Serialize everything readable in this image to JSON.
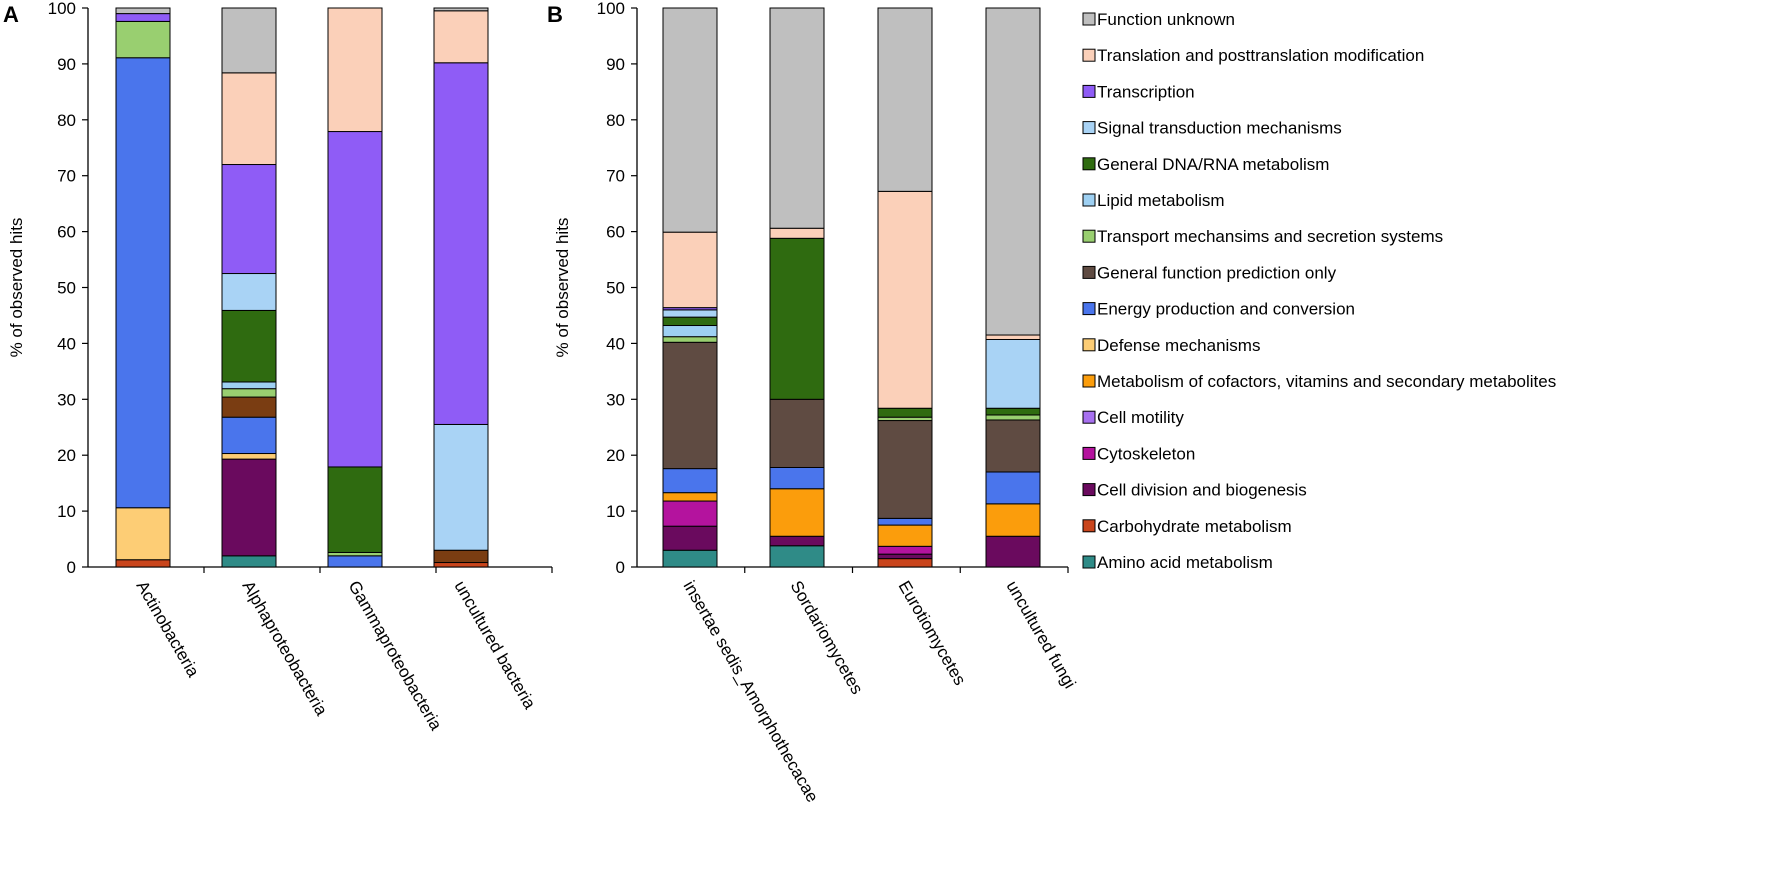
{
  "chart_data": [
    {
      "type": "bar",
      "stacked": true,
      "panel_label": "A",
      "ylabel": "% of observed hits",
      "ylim": [
        0,
        100
      ],
      "yticks": [
        0,
        10,
        20,
        30,
        40,
        50,
        60,
        70,
        80,
        90,
        100
      ],
      "categories": [
        "Actinobacteria",
        "Alphaproteobacteria",
        "Gammaproteobacteria",
        "uncultured bacteria"
      ],
      "series": [
        {
          "name": "Amino acid metabolism",
          "values": [
            0,
            2,
            0,
            0
          ]
        },
        {
          "name": "Carbohydrate metabolism",
          "values": [
            1.3,
            0,
            0,
            0.8
          ]
        },
        {
          "name": "Cell division and biogenesis",
          "values": [
            0,
            17.3,
            0,
            0
          ]
        },
        {
          "name": "Cytoskeleton",
          "values": [
            0,
            0,
            0,
            0
          ]
        },
        {
          "name": "Cell motility",
          "values": [
            0,
            0,
            0,
            0
          ]
        },
        {
          "name": "Metabolism of cofactors, vitamins and secondary metabolites",
          "values": [
            0,
            0,
            0,
            0
          ]
        },
        {
          "name": "Defense mechanisms",
          "values": [
            9.3,
            1,
            0,
            0
          ]
        },
        {
          "name": "Energy production and conversion",
          "values": [
            80.5,
            6.5,
            2,
            0
          ]
        },
        {
          "name": "General function prediction only",
          "values": [
            0,
            3.6,
            0,
            2.2
          ]
        },
        {
          "name": "Transport mechansims and secretion systems",
          "values": [
            6.5,
            1.5,
            0.6,
            0
          ]
        },
        {
          "name": "Lipid metabolism",
          "values": [
            0,
            1.2,
            0,
            0
          ]
        },
        {
          "name": "General DNA/RNA metabolism",
          "values": [
            0,
            12.8,
            15.3,
            0
          ]
        },
        {
          "name": "Signal transduction mechanisms",
          "values": [
            0,
            6.6,
            0,
            22.5
          ]
        },
        {
          "name": "Transcription",
          "values": [
            1.4,
            19.5,
            60,
            64.7
          ]
        },
        {
          "name": "Translation and posttranslation modification",
          "values": [
            0,
            16.4,
            22.1,
            9.3
          ]
        },
        {
          "name": "Function unknown",
          "values": [
            1,
            11.6,
            0,
            0.5
          ]
        }
      ]
    },
    {
      "type": "bar",
      "stacked": true,
      "panel_label": "B",
      "ylabel": "% of observed hits",
      "ylim": [
        0,
        100
      ],
      "yticks": [
        0,
        10,
        20,
        30,
        40,
        50,
        60,
        70,
        80,
        90,
        100
      ],
      "categories": [
        "insertae sedis_Amorphothecacae",
        "Sordariomycetes",
        "Eurotiomycetes",
        "uncultured fungi"
      ],
      "series": [
        {
          "name": "Amino acid metabolism",
          "values": [
            3,
            3.8,
            0,
            0
          ]
        },
        {
          "name": "Carbohydrate metabolism",
          "values": [
            0,
            0,
            1.5,
            0
          ]
        },
        {
          "name": "Cell division and biogenesis",
          "values": [
            4.3,
            1.7,
            0.8,
            5.5
          ]
        },
        {
          "name": "Cytoskeleton",
          "values": [
            4.5,
            0,
            1.4,
            0
          ]
        },
        {
          "name": "Cell motility",
          "values": [
            0,
            0,
            0,
            0
          ]
        },
        {
          "name": "Metabolism of cofactors, vitamins and secondary metabolites",
          "values": [
            1.5,
            8.5,
            3.8,
            5.8
          ]
        },
        {
          "name": "Defense mechanisms",
          "values": [
            0,
            0,
            0,
            0
          ]
        },
        {
          "name": "Energy production and conversion",
          "values": [
            4.3,
            3.8,
            1.2,
            5.7
          ]
        },
        {
          "name": "General function prediction only",
          "values": [
            22.6,
            12.2,
            17.5,
            9.3
          ]
        },
        {
          "name": "Transport mechansims and secretion systems",
          "values": [
            1,
            0,
            0.6,
            0.9
          ]
        },
        {
          "name": "Lipid metabolism",
          "values": [
            2,
            0,
            0,
            0
          ]
        },
        {
          "name": "General DNA/RNA metabolism",
          "values": [
            1.5,
            28.8,
            1.6,
            1.2
          ]
        },
        {
          "name": "Signal transduction mechanisms",
          "values": [
            1.3,
            0,
            0,
            12.3
          ]
        },
        {
          "name": "Transcription",
          "values": [
            0.4,
            0,
            0,
            0
          ]
        },
        {
          "name": "Translation and posttranslation modification",
          "values": [
            13.5,
            1.8,
            38.8,
            0.8
          ]
        },
        {
          "name": "Function unknown",
          "values": [
            40.1,
            39.4,
            32.8,
            58.5
          ]
        }
      ]
    }
  ],
  "legend": [
    {
      "name": "Function unknown",
      "color": "#bfbfbf"
    },
    {
      "name": "Translation and posttranslation modification",
      "color": "#fbd0b9"
    },
    {
      "name": "Transcription",
      "color": "#8f5cf6"
    },
    {
      "name": "Signal transduction mechanisms",
      "color": "#a9d3f5"
    },
    {
      "name": "General DNA/RNA metabolism",
      "color": "#2f6b10"
    },
    {
      "name": "Lipid metabolism",
      "color": "#9ed0f2"
    },
    {
      "name": "Transport mechansims and secretion systems",
      "color": "#99cf70"
    },
    {
      "name": "General function prediction only",
      "color": "#5f4b42"
    },
    {
      "name": "Energy production and conversion",
      "color": "#4a75ec"
    },
    {
      "name": "Defense mechanisms",
      "color": "#fdcd75"
    },
    {
      "name": "Metabolism of cofactors, vitamins and secondary metabolites",
      "color": "#fb9d0c"
    },
    {
      "name": "Cell motility",
      "color": "#a770ef"
    },
    {
      "name": "Cytoskeleton",
      "color": "#b4139e"
    },
    {
      "name": "Cell division and biogenesis",
      "color": "#6a0a5e"
    },
    {
      "name": "Carbohydrate metabolism",
      "color": "#c9451c"
    },
    {
      "name": "Amino acid metabolism",
      "color": "#2f8b87"
    }
  ],
  "extra_colors": {
    "General function prediction only (bacteria, brown)": "#7a3d12"
  }
}
